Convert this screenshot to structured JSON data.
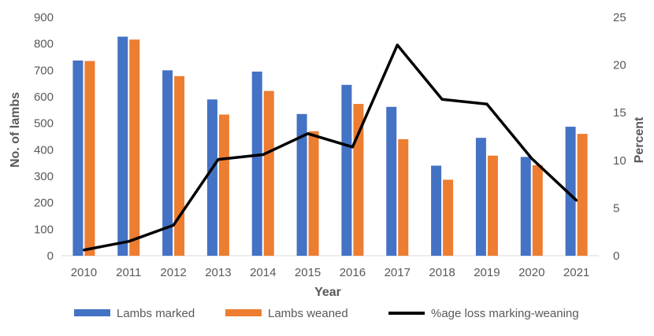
{
  "chart_data": {
    "type": "bar",
    "categories": [
      "2010",
      "2011",
      "2012",
      "2013",
      "2014",
      "2015",
      "2016",
      "2017",
      "2018",
      "2019",
      "2020",
      "2021"
    ],
    "series": [
      {
        "name": "Lambs marked",
        "kind": "bar",
        "axis": "left",
        "color": "#4472C4",
        "values": [
          737,
          827,
          700,
          590,
          695,
          535,
          645,
          562,
          340,
          445,
          373,
          487
        ]
      },
      {
        "name": "Lambs weaned",
        "kind": "bar",
        "axis": "left",
        "color": "#ED7D31",
        "values": [
          735,
          816,
          678,
          533,
          622,
          470,
          573,
          440,
          287,
          378,
          342,
          460
        ]
      },
      {
        "name": "%age loss marking-weaning",
        "kind": "line",
        "axis": "right",
        "color": "#000000",
        "values": [
          0.6,
          1.5,
          3.2,
          10.1,
          10.6,
          12.8,
          11.4,
          22.1,
          16.4,
          15.9,
          10.2,
          5.8
        ]
      }
    ],
    "xlabel": "Year",
    "ylabel": "No. of lambs",
    "y2label": "Percent",
    "ylim": [
      0,
      900
    ],
    "y2lim": [
      0,
      25
    ],
    "yticks": [
      "0",
      "100",
      "200",
      "300",
      "400",
      "500",
      "600",
      "700",
      "800",
      "900"
    ],
    "y2ticks": [
      "0",
      "5",
      "10",
      "15",
      "20",
      "25"
    ],
    "grid": false,
    "legend_position": "bottom"
  }
}
